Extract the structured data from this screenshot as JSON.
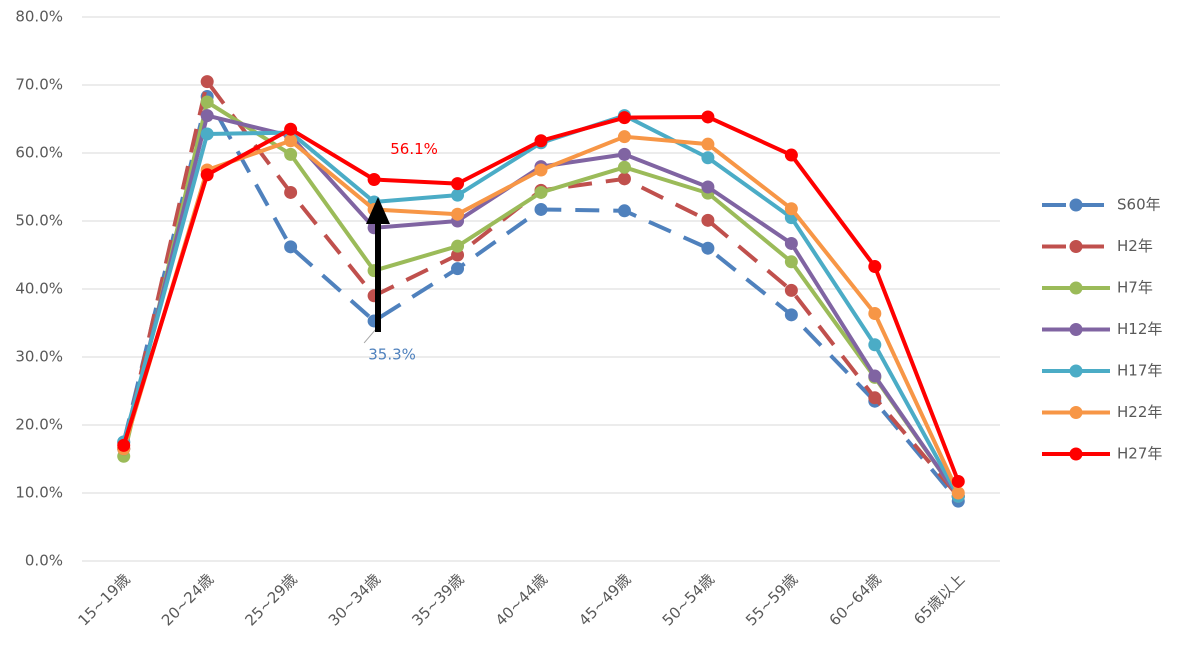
{
  "chart_data": {
    "type": "line",
    "categories": [
      "15~19歳",
      "20~24歳",
      "25~29歳",
      "30~34歳",
      "35~39歳",
      "40~44歳",
      "45~49歳",
      "50~54歳",
      "55~59歳",
      "60~64歳",
      "65歳以上"
    ],
    "ylim": [
      0,
      80
    ],
    "yticks": [
      {
        "value": 0,
        "label": "0.0%"
      },
      {
        "value": 10,
        "label": "10.0%"
      },
      {
        "value": 20,
        "label": "20.0%"
      },
      {
        "value": 30,
        "label": "30.0%"
      },
      {
        "value": 40,
        "label": "40.0%"
      },
      {
        "value": 50,
        "label": "50.0%"
      },
      {
        "value": 60,
        "label": "60.0%"
      },
      {
        "value": 70,
        "label": "70.0%"
      },
      {
        "value": 80,
        "label": "80.0%"
      }
    ],
    "grid": true,
    "legend": "right",
    "series": [
      {
        "name": "S60年",
        "color": "#4f81bd",
        "dashed": true,
        "values": [
          17.5,
          68.3,
          46.2,
          35.3,
          43.0,
          51.7,
          51.5,
          46.0,
          36.2,
          23.5,
          8.8
        ],
        "value_labels": [
          null,
          null,
          null,
          "35.3%",
          null,
          null,
          null,
          null,
          null,
          null,
          null
        ]
      },
      {
        "name": "H2年",
        "color": "#c0504d",
        "dashed": true,
        "values": [
          16.5,
          70.5,
          54.2,
          39.0,
          45.0,
          54.5,
          56.2,
          50.1,
          39.8,
          24.0,
          9.5
        ]
      },
      {
        "name": "H7年",
        "color": "#9bbb59",
        "dashed": false,
        "values": [
          15.4,
          67.5,
          59.8,
          42.7,
          46.3,
          54.2,
          57.9,
          54.1,
          44.0,
          27.0,
          9.5
        ]
      },
      {
        "name": "H12年",
        "color": "#8064a2",
        "dashed": false,
        "values": [
          16.5,
          65.5,
          62.5,
          49.0,
          50.0,
          58.0,
          59.8,
          55.0,
          46.7,
          27.2,
          9.5
        ]
      },
      {
        "name": "H17年",
        "color": "#4bacc6",
        "dashed": false,
        "values": [
          17.5,
          62.8,
          63.0,
          52.8,
          53.8,
          61.5,
          65.5,
          59.3,
          50.5,
          31.8,
          9.5
        ]
      },
      {
        "name": "H22年",
        "color": "#f79646",
        "dashed": false,
        "values": [
          16.5,
          57.5,
          61.8,
          51.7,
          51.0,
          57.5,
          62.4,
          61.3,
          51.8,
          36.4,
          10.0
        ]
      },
      {
        "name": "H27年",
        "color": "#ff0000",
        "dashed": false,
        "values": [
          17.0,
          56.8,
          63.5,
          56.1,
          55.5,
          61.8,
          65.2,
          65.3,
          59.7,
          43.3,
          11.7
        ],
        "value_labels": [
          null,
          null,
          null,
          "56.1%",
          null,
          null,
          null,
          null,
          null,
          null,
          null
        ]
      }
    ]
  }
}
